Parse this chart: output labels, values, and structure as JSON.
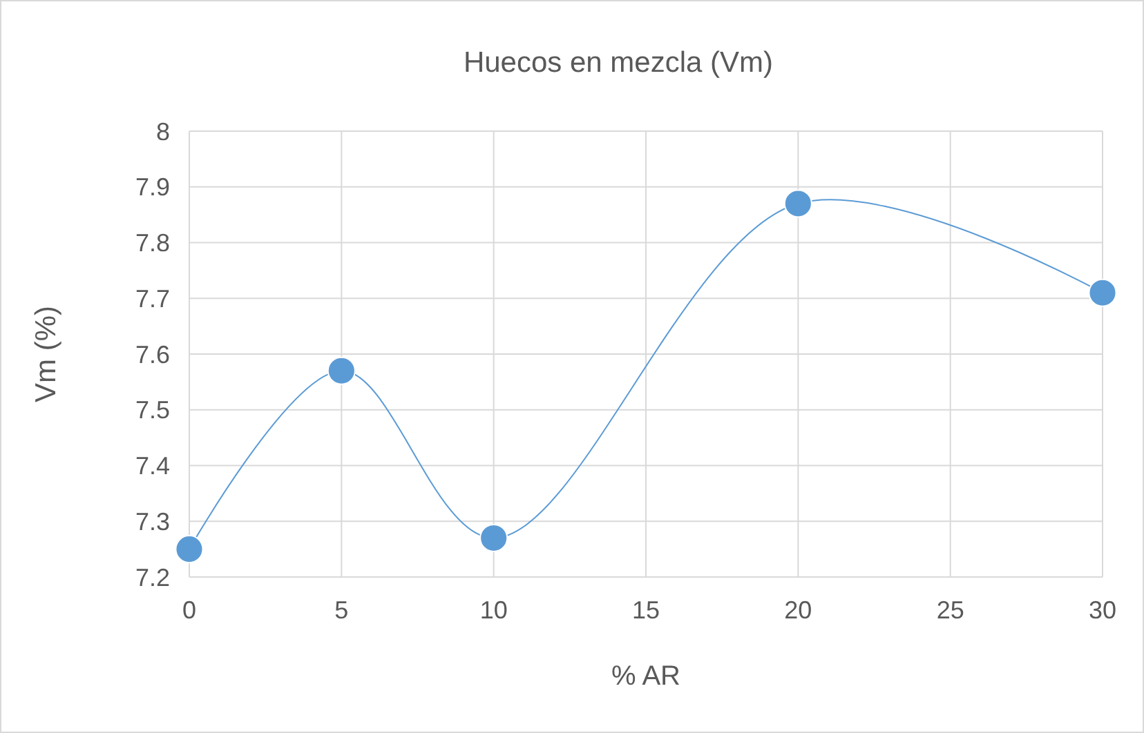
{
  "chart_data": {
    "type": "scatter",
    "title": "Huecos en mezcla (Vm)",
    "xlabel": "% AR",
    "ylabel": "Vm (%)",
    "x": [
      0,
      5,
      10,
      20,
      30
    ],
    "series": [
      {
        "type": "line",
        "color": "#5b9bd5",
        "values": [
          7.25,
          7.57,
          7.27,
          7.87,
          7.71
        ]
      }
    ],
    "marker": "circle",
    "xlim": [
      0,
      30
    ],
    "xticks": [
      0,
      5,
      10,
      15,
      20,
      25,
      30
    ],
    "ylim": [
      7.2,
      8
    ],
    "yticks": [
      {
        "value": 7.2,
        "label": "7.2"
      },
      {
        "value": 7.3,
        "label": "7.3"
      },
      {
        "value": 7.4,
        "label": "7.4"
      },
      {
        "value": 7.5,
        "label": "7.5"
      },
      {
        "value": 7.6,
        "label": "7.6"
      },
      {
        "value": 7.7,
        "label": "7.7"
      },
      {
        "value": 7.8,
        "label": "7.8"
      },
      {
        "value": 7.9,
        "label": "7.9"
      },
      {
        "value": 8,
        "label": "8"
      }
    ],
    "grid": true
  }
}
